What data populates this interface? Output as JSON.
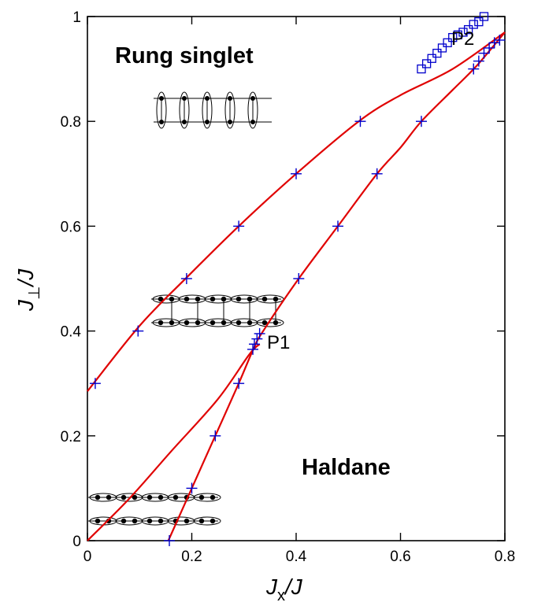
{
  "chart_data": {
    "type": "line",
    "xlim": [
      0,
      0.8
    ],
    "ylim": [
      0,
      1
    ],
    "xticks": [
      0,
      0.2,
      0.4,
      0.6,
      0.8
    ],
    "yticks": [
      0,
      0.2,
      0.4,
      0.6,
      0.8,
      1
    ],
    "xtick_labels": [
      "0",
      "0.2",
      "0.4",
      "0.6",
      "0.8"
    ],
    "ytick_labels": [
      "0",
      "0.2",
      "0.4",
      "0.6",
      "0.8",
      "1"
    ],
    "xlabel_main": "J",
    "xlabel_sub": "x",
    "xlabel_rest": "/J",
    "ylabel_main": "J",
    "ylabel_sub": "⊥",
    "ylabel_rest": "/J",
    "region_labels": {
      "rung_singlet": "Rung singlet",
      "haldane": "Haldane"
    },
    "point_labels": {
      "p1": "P1",
      "p2": "P2"
    },
    "line_color": "#e00000",
    "marker_color": "#0000cc",
    "series": [
      {
        "curve": [
          [
            0,
            0.285
          ],
          [
            0.1,
            0.41
          ],
          [
            0.19,
            0.502
          ],
          [
            0.29,
            0.6
          ],
          [
            0.4,
            0.7
          ],
          [
            0.52,
            0.8
          ],
          [
            0.6,
            0.85
          ],
          [
            0.7,
            0.9
          ],
          [
            0.8,
            0.97
          ]
        ],
        "points": [
          [
            0.015,
            0.3
          ],
          [
            0.097,
            0.4
          ],
          [
            0.19,
            0.5
          ],
          [
            0.29,
            0.6
          ],
          [
            0.4,
            0.7
          ],
          [
            0.523,
            0.8
          ]
        ]
      },
      {
        "curve": [
          [
            0.155,
            0
          ],
          [
            0.2,
            0.1
          ],
          [
            0.245,
            0.2
          ],
          [
            0.29,
            0.3
          ],
          [
            0.32,
            0.37
          ],
          [
            0.34,
            0.405
          ],
          [
            0.405,
            0.5
          ],
          [
            0.48,
            0.6
          ],
          [
            0.555,
            0.7
          ],
          [
            0.6,
            0.75
          ],
          [
            0.64,
            0.8
          ],
          [
            0.7,
            0.86
          ],
          [
            0.745,
            0.905
          ],
          [
            0.8,
            0.97
          ]
        ],
        "points": [
          [
            0.157,
            0
          ],
          [
            0.2,
            0.1
          ],
          [
            0.245,
            0.2
          ],
          [
            0.29,
            0.3
          ],
          [
            0.317,
            0.365
          ],
          [
            0.32,
            0.375
          ],
          [
            0.325,
            0.385
          ],
          [
            0.33,
            0.395
          ],
          [
            0.405,
            0.5
          ],
          [
            0.48,
            0.6
          ],
          [
            0.555,
            0.7
          ],
          [
            0.64,
            0.8
          ],
          [
            0.74,
            0.9
          ],
          [
            0.75,
            0.915
          ],
          [
            0.76,
            0.93
          ],
          [
            0.77,
            0.94
          ],
          [
            0.78,
            0.95
          ],
          [
            0.79,
            0.955
          ]
        ]
      },
      {
        "curve": [
          [
            0,
            0
          ],
          [
            0.08,
            0.08
          ],
          [
            0.16,
            0.17
          ],
          [
            0.25,
            0.27
          ],
          [
            0.31,
            0.355
          ],
          [
            0.33,
            0.375
          ]
        ],
        "points": []
      },
      {
        "curve": [],
        "points": [
          [
            0.64,
            0.9
          ],
          [
            0.65,
            0.91
          ],
          [
            0.66,
            0.92
          ],
          [
            0.67,
            0.93
          ],
          [
            0.68,
            0.94
          ],
          [
            0.69,
            0.95
          ],
          [
            0.7,
            0.96
          ],
          [
            0.71,
            0.965
          ],
          [
            0.72,
            0.97
          ],
          [
            0.73,
            0.975
          ],
          [
            0.74,
            0.985
          ],
          [
            0.75,
            0.99
          ],
          [
            0.76,
            1.0
          ]
        ]
      }
    ]
  }
}
